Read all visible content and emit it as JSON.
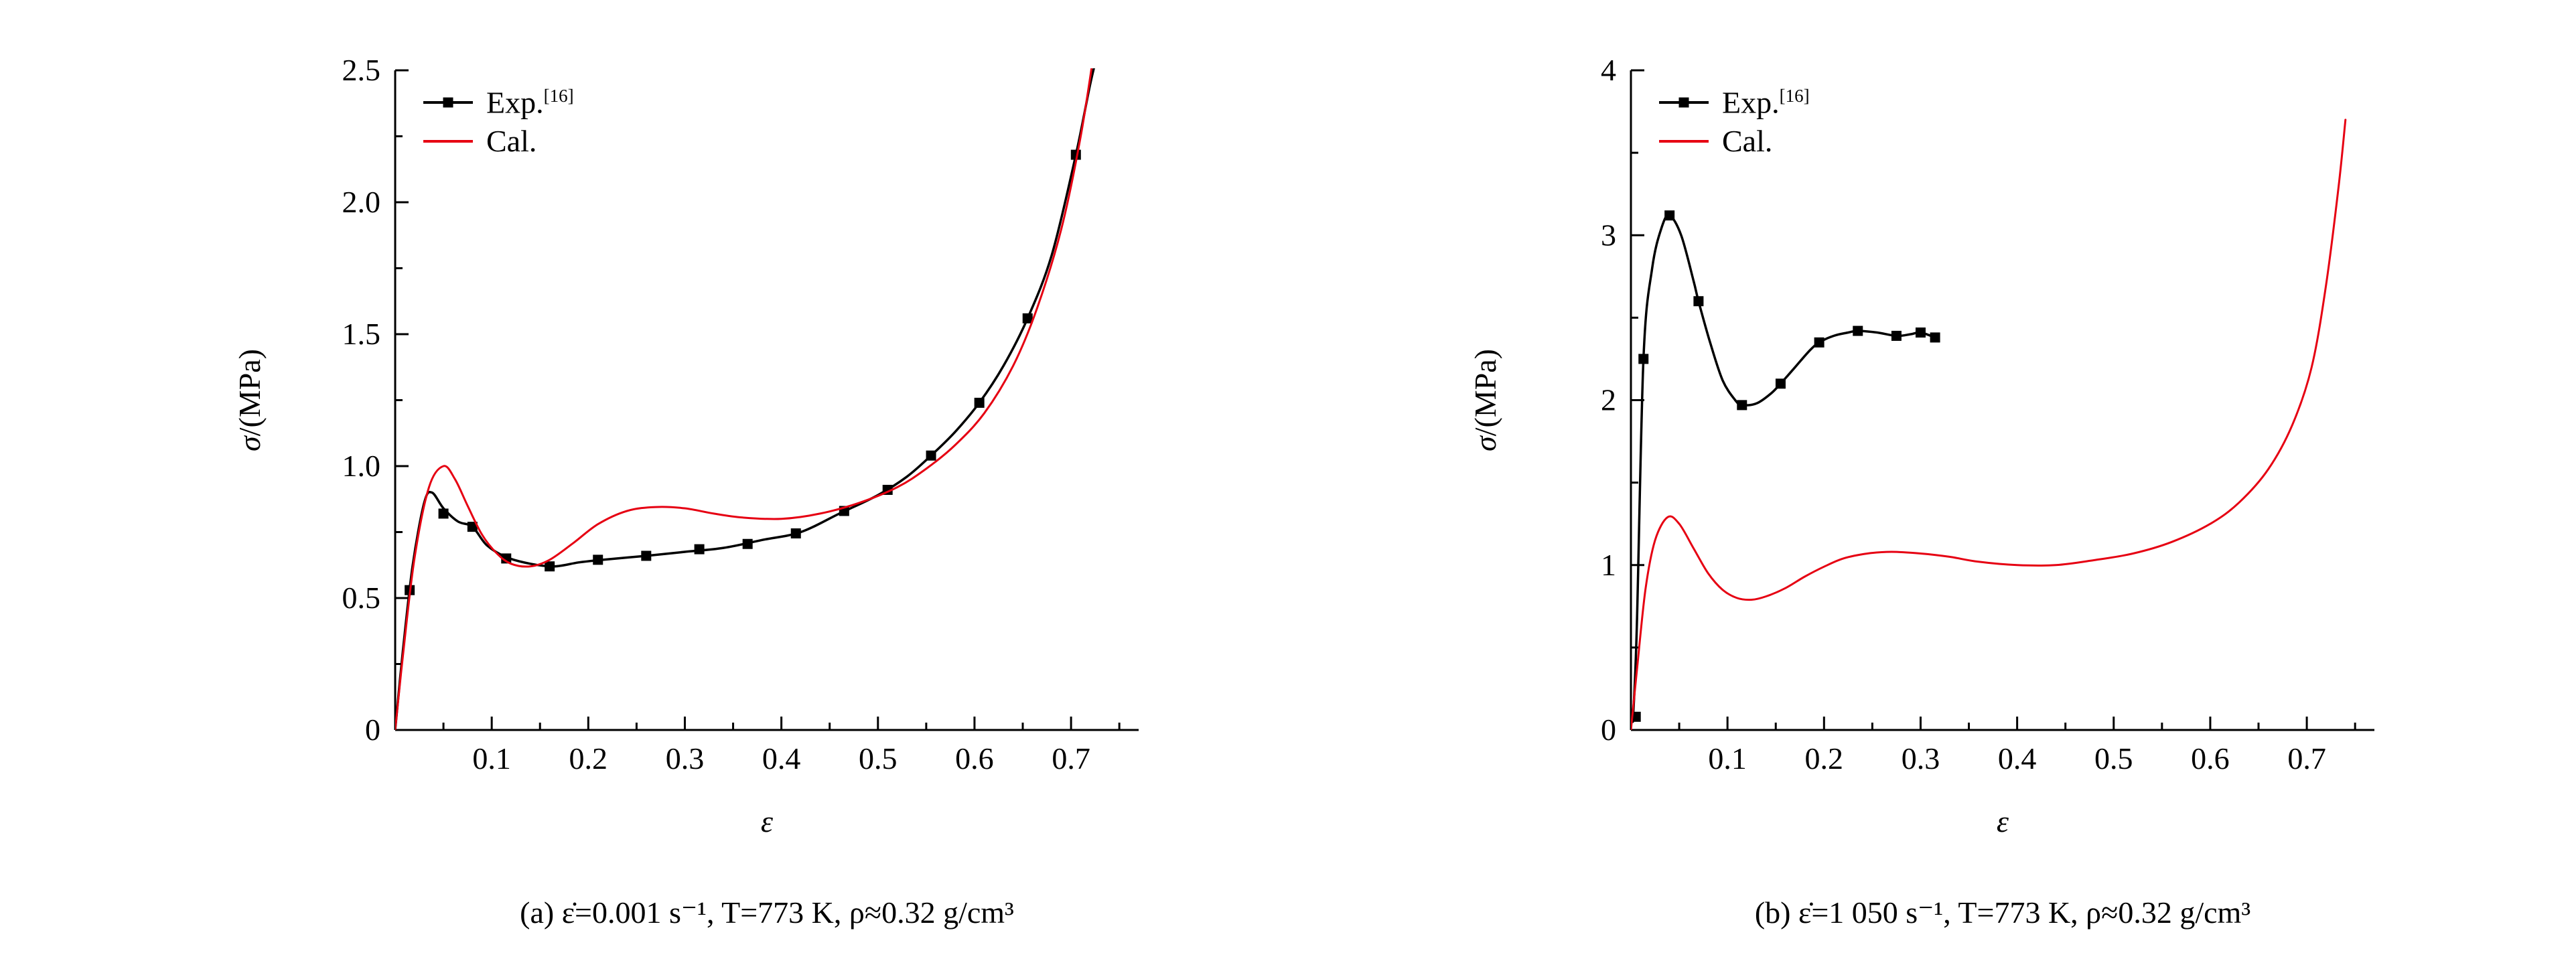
{
  "colors": {
    "exp": "#000000",
    "cal": "#e60012",
    "background": "#ffffff"
  },
  "chart_data": [
    {
      "id": "a",
      "type": "line",
      "caption": "(a) ε̇=0.001 s⁻¹, T=773 K, ρ≈0.32 g/cm³",
      "xlabel": "ε",
      "ylabel_sym": "σ",
      "ylabel_rest": "/(MPa)",
      "xlim": [
        0,
        0.77
      ],
      "ylim": [
        0,
        2.5
      ],
      "x_ticks": {
        "values": [
          0.1,
          0.2,
          0.3,
          0.4,
          0.5,
          0.6,
          0.7
        ],
        "labels": [
          "0.1",
          "0.2",
          "0.3",
          "0.4",
          "0.5",
          "0.6",
          "0.7"
        ]
      },
      "x_minor": [
        0.05,
        0.15,
        0.25,
        0.35,
        0.45,
        0.55,
        0.65,
        0.75
      ],
      "y_ticks": {
        "values": [
          0,
          0.5,
          1.0,
          1.5,
          2.0,
          2.5
        ],
        "labels": [
          "0",
          "0.5",
          "1.0",
          "1.5",
          "2.0",
          "2.5"
        ]
      },
      "y_minor": [
        0.25,
        0.75,
        1.25,
        1.75,
        2.25
      ],
      "legend": [
        {
          "label": "Exp.",
          "sup": "[16]"
        },
        {
          "label": "Cal."
        }
      ],
      "series": [
        {
          "name": "Exp",
          "color": "#000000",
          "width": 3.5,
          "points": [
            [
              0,
              0
            ],
            [
              0.008,
              0.3
            ],
            [
              0.018,
              0.62
            ],
            [
              0.03,
              0.86
            ],
            [
              0.038,
              0.9
            ],
            [
              0.05,
              0.84
            ],
            [
              0.065,
              0.79
            ],
            [
              0.08,
              0.77
            ],
            [
              0.095,
              0.7
            ],
            [
              0.115,
              0.655
            ],
            [
              0.14,
              0.63
            ],
            [
              0.165,
              0.62
            ],
            [
              0.19,
              0.635
            ],
            [
              0.215,
              0.645
            ],
            [
              0.26,
              0.66
            ],
            [
              0.3,
              0.675
            ],
            [
              0.34,
              0.69
            ],
            [
              0.38,
              0.72
            ],
            [
              0.42,
              0.75
            ],
            [
              0.46,
              0.82
            ],
            [
              0.5,
              0.89
            ],
            [
              0.53,
              0.96
            ],
            [
              0.555,
              1.04
            ],
            [
              0.58,
              1.13
            ],
            [
              0.605,
              1.24
            ],
            [
              0.63,
              1.38
            ],
            [
              0.655,
              1.56
            ],
            [
              0.68,
              1.8
            ],
            [
              0.705,
              2.18
            ],
            [
              0.72,
              2.45
            ],
            [
              0.73,
              2.6
            ]
          ],
          "marker": "square",
          "marker_points": [
            [
              0.015,
              0.53
            ],
            [
              0.05,
              0.82
            ],
            [
              0.08,
              0.77
            ],
            [
              0.115,
              0.65
            ],
            [
              0.16,
              0.62
            ],
            [
              0.21,
              0.645
            ],
            [
              0.26,
              0.66
            ],
            [
              0.315,
              0.685
            ],
            [
              0.365,
              0.705
            ],
            [
              0.415,
              0.745
            ],
            [
              0.465,
              0.83
            ],
            [
              0.51,
              0.91
            ],
            [
              0.555,
              1.04
            ],
            [
              0.605,
              1.24
            ],
            [
              0.655,
              1.56
            ],
            [
              0.705,
              2.18
            ]
          ]
        },
        {
          "name": "Cal",
          "color": "#e60012",
          "width": 3,
          "points": [
            [
              0,
              0
            ],
            [
              0.008,
              0.28
            ],
            [
              0.02,
              0.65
            ],
            [
              0.035,
              0.92
            ],
            [
              0.05,
              1.0
            ],
            [
              0.062,
              0.95
            ],
            [
              0.075,
              0.85
            ],
            [
              0.09,
              0.74
            ],
            [
              0.105,
              0.67
            ],
            [
              0.12,
              0.63
            ],
            [
              0.14,
              0.62
            ],
            [
              0.16,
              0.645
            ],
            [
              0.185,
              0.71
            ],
            [
              0.21,
              0.78
            ],
            [
              0.24,
              0.83
            ],
            [
              0.27,
              0.845
            ],
            [
              0.3,
              0.84
            ],
            [
              0.33,
              0.82
            ],
            [
              0.36,
              0.805
            ],
            [
              0.4,
              0.8
            ],
            [
              0.44,
              0.82
            ],
            [
              0.48,
              0.86
            ],
            [
              0.52,
              0.92
            ],
            [
              0.55,
              0.99
            ],
            [
              0.58,
              1.08
            ],
            [
              0.61,
              1.2
            ],
            [
              0.64,
              1.38
            ],
            [
              0.665,
              1.6
            ],
            [
              0.69,
              1.9
            ],
            [
              0.71,
              2.25
            ],
            [
              0.725,
              2.6
            ]
          ],
          "marker": null,
          "marker_points": []
        }
      ]
    },
    {
      "id": "b",
      "type": "line",
      "caption": "(b) ε̇=1 050 s⁻¹, T=773 K, ρ≈0.32 g/cm³",
      "xlabel": "ε",
      "ylabel_sym": "σ",
      "ylabel_rest": "/(MPa)",
      "xlim": [
        0,
        0.77
      ],
      "ylim": [
        0,
        4
      ],
      "x_ticks": {
        "values": [
          0.1,
          0.2,
          0.3,
          0.4,
          0.5,
          0.6,
          0.7
        ],
        "labels": [
          "0.1",
          "0.2",
          "0.3",
          "0.4",
          "0.5",
          "0.6",
          "0.7"
        ]
      },
      "x_minor": [
        0.05,
        0.15,
        0.25,
        0.35,
        0.45,
        0.55,
        0.65,
        0.75
      ],
      "y_ticks": {
        "values": [
          0,
          1,
          2,
          3,
          4
        ],
        "labels": [
          "0",
          "1",
          "2",
          "3",
          "4"
        ]
      },
      "y_minor": [
        0.5,
        1.5,
        2.5,
        3.5
      ],
      "legend": [
        {
          "label": "Exp.",
          "sup": "[16]"
        },
        {
          "label": "Cal."
        }
      ],
      "series": [
        {
          "name": "Exp",
          "color": "#000000",
          "width": 3.5,
          "points": [
            [
              0.002,
              0.05
            ],
            [
              0.006,
              0.6
            ],
            [
              0.013,
              2.25
            ],
            [
              0.022,
              2.8
            ],
            [
              0.032,
              3.05
            ],
            [
              0.04,
              3.12
            ],
            [
              0.052,
              3.0
            ],
            [
              0.065,
              2.72
            ],
            [
              0.07,
              2.6
            ],
            [
              0.082,
              2.35
            ],
            [
              0.095,
              2.12
            ],
            [
              0.108,
              2.0
            ],
            [
              0.115,
              1.97
            ],
            [
              0.13,
              1.98
            ],
            [
              0.145,
              2.04
            ],
            [
              0.155,
              2.1
            ],
            [
              0.17,
              2.2
            ],
            [
              0.185,
              2.3
            ],
            [
              0.195,
              2.35
            ],
            [
              0.21,
              2.39
            ],
            [
              0.225,
              2.41
            ],
            [
              0.235,
              2.42
            ],
            [
              0.255,
              2.41
            ],
            [
              0.275,
              2.39
            ],
            [
              0.29,
              2.4
            ],
            [
              0.3,
              2.41
            ],
            [
              0.315,
              2.38
            ]
          ],
          "marker": "square",
          "marker_points": [
            [
              0.005,
              0.08
            ],
            [
              0.013,
              2.25
            ],
            [
              0.04,
              3.12
            ],
            [
              0.07,
              2.6
            ],
            [
              0.115,
              1.97
            ],
            [
              0.155,
              2.1
            ],
            [
              0.195,
              2.35
            ],
            [
              0.235,
              2.42
            ],
            [
              0.275,
              2.39
            ],
            [
              0.3,
              2.41
            ],
            [
              0.315,
              2.38
            ]
          ]
        },
        {
          "name": "Cal",
          "color": "#e60012",
          "width": 3,
          "points": [
            [
              0,
              0
            ],
            [
              0.006,
              0.35
            ],
            [
              0.015,
              0.85
            ],
            [
              0.025,
              1.15
            ],
            [
              0.038,
              1.29
            ],
            [
              0.05,
              1.25
            ],
            [
              0.065,
              1.1
            ],
            [
              0.08,
              0.95
            ],
            [
              0.095,
              0.85
            ],
            [
              0.11,
              0.8
            ],
            [
              0.125,
              0.79
            ],
            [
              0.14,
              0.81
            ],
            [
              0.16,
              0.86
            ],
            [
              0.18,
              0.93
            ],
            [
              0.2,
              0.99
            ],
            [
              0.22,
              1.04
            ],
            [
              0.245,
              1.07
            ],
            [
              0.27,
              1.08
            ],
            [
              0.3,
              1.07
            ],
            [
              0.33,
              1.05
            ],
            [
              0.36,
              1.02
            ],
            [
              0.4,
              1.0
            ],
            [
              0.44,
              1.0
            ],
            [
              0.48,
              1.03
            ],
            [
              0.52,
              1.07
            ],
            [
              0.56,
              1.14
            ],
            [
              0.6,
              1.25
            ],
            [
              0.63,
              1.38
            ],
            [
              0.66,
              1.58
            ],
            [
              0.685,
              1.85
            ],
            [
              0.705,
              2.2
            ],
            [
              0.72,
              2.7
            ],
            [
              0.733,
              3.3
            ],
            [
              0.74,
              3.7
            ]
          ],
          "marker": null,
          "marker_points": []
        }
      ]
    }
  ]
}
